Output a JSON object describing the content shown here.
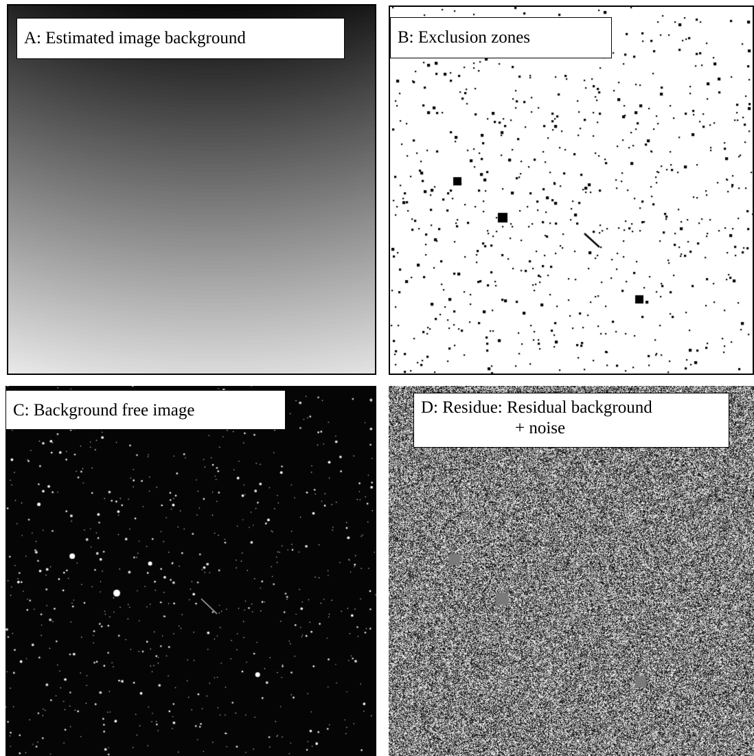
{
  "panels": {
    "a": {
      "label": "A: Estimated image background"
    },
    "b": {
      "label": "B: Exclusion zones"
    },
    "c": {
      "label": "C: Background free image"
    },
    "d": {
      "label_line1": "D: Residue: Residual background",
      "label_line2": "+ noise"
    }
  }
}
